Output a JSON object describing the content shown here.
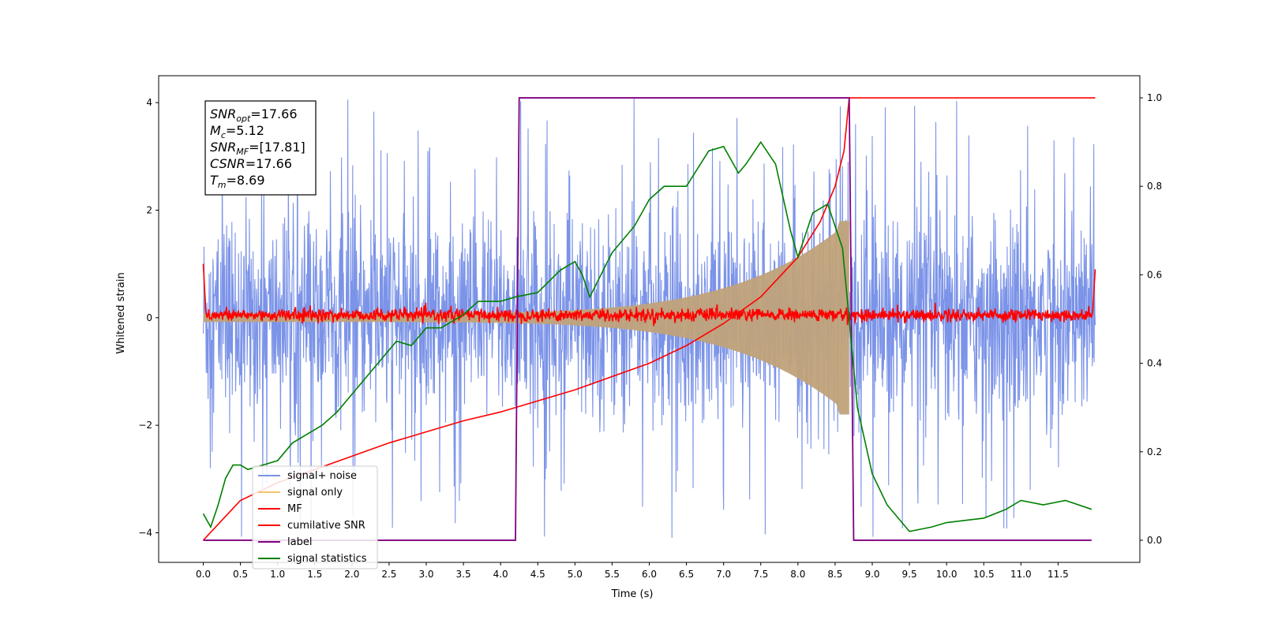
{
  "chart_data": {
    "type": "line",
    "xlabel": "Time (s)",
    "ylabel": "Whitened strain",
    "xlim": [
      -0.6,
      12.6
    ],
    "ylim": [
      -4.55,
      4.5
    ],
    "ylim_right": [
      -0.05,
      1.05
    ],
    "x_ticks": [
      "0.0",
      "0.5",
      "1.0",
      "1.5",
      "2.0",
      "2.5",
      "3.0",
      "3.5",
      "4.0",
      "4.5",
      "5.0",
      "5.5",
      "6.0",
      "6.5",
      "7.0",
      "7.5",
      "8.0",
      "8.5",
      "9.0",
      "9.5",
      "10.0",
      "10.5",
      "11.0",
      "11.5"
    ],
    "y_ticks_left": [
      "4",
      "2",
      "0",
      "−2",
      "−4"
    ],
    "y_ticks_right": [
      "1.0",
      "0.8",
      "0.6",
      "0.4",
      "0.2",
      "0.0"
    ],
    "annotation": {
      "lines": [
        {
          "sym": "SNR",
          "sub": "opt",
          "val": "=17.66"
        },
        {
          "sym": "M",
          "sub": "c",
          "val": "=5.12"
        },
        {
          "sym": "SNR",
          "sub": "MF",
          "val": "=[17.81]"
        },
        {
          "sym": "CSNR",
          "sub": "",
          "val": "=17.66"
        },
        {
          "sym": "T",
          "sub": "m",
          "val": "=8.69"
        }
      ]
    },
    "legend": {
      "placement": "lower-left",
      "entries": [
        {
          "label": "signal+ noise",
          "color": "#7b93e8"
        },
        {
          "label": "signal only",
          "color": "#f5c56b"
        },
        {
          "label": "MF",
          "color": "#ff0000"
        },
        {
          "label": "cumilative SNR",
          "color": "#ff0000"
        },
        {
          "label": "label",
          "color": "#800080"
        },
        {
          "label": "signal statistics",
          "color": "#008000"
        }
      ]
    },
    "series": [
      {
        "name": "signal+ noise",
        "axis": "left",
        "color": "#7b93e8",
        "x_range": [
          0,
          12.0
        ],
        "envelope": 2.5,
        "spike_max": 4.1
      },
      {
        "name": "signal only",
        "axis": "left",
        "color": "#c0a27a",
        "chirp_end": 8.69,
        "amplitude_start": 0.08,
        "amplitude_end": 1.8
      },
      {
        "name": "MF",
        "axis": "left",
        "color": "#ff0000",
        "x_range": [
          0,
          12.0
        ],
        "level": 0.05,
        "noise": 0.06
      },
      {
        "name": "cumilative SNR",
        "axis": "right",
        "color": "#ff0000",
        "x": [
          0,
          0.5,
          1.0,
          1.5,
          2.0,
          2.5,
          3.0,
          3.5,
          4.0,
          4.5,
          5.0,
          5.5,
          6.0,
          6.5,
          7.0,
          7.5,
          8.0,
          8.3,
          8.5,
          8.62,
          8.69,
          12.0
        ],
        "y": [
          0,
          0.09,
          0.13,
          0.16,
          0.19,
          0.22,
          0.245,
          0.27,
          0.29,
          0.315,
          0.34,
          0.37,
          0.4,
          0.44,
          0.49,
          0.55,
          0.64,
          0.72,
          0.8,
          0.88,
          1.0,
          1.0
        ]
      },
      {
        "name": "label",
        "axis": "right",
        "color": "#800080",
        "x": [
          0,
          4.2,
          4.25,
          8.69,
          8.75,
          11.95
        ],
        "y": [
          0,
          0,
          1,
          1,
          0,
          0
        ]
      },
      {
        "name": "signal statistics",
        "axis": "right",
        "color": "#008000",
        "x": [
          0,
          0.1,
          0.2,
          0.3,
          0.4,
          0.5,
          0.6,
          0.8,
          1.0,
          1.2,
          1.4,
          1.6,
          1.8,
          2.0,
          2.2,
          2.4,
          2.6,
          2.8,
          3.0,
          3.2,
          3.5,
          3.7,
          4.0,
          4.2,
          4.5,
          4.8,
          5.0,
          5.1,
          5.2,
          5.5,
          5.8,
          6.0,
          6.2,
          6.5,
          6.8,
          7.0,
          7.2,
          7.3,
          7.5,
          7.7,
          7.9,
          8.0,
          8.2,
          8.4,
          8.6,
          8.8,
          9.0,
          9.2,
          9.5,
          9.8,
          10.0,
          10.5,
          10.8,
          11.0,
          11.3,
          11.6,
          11.95
        ],
        "y": [
          0.06,
          0.03,
          0.08,
          0.14,
          0.17,
          0.17,
          0.16,
          0.17,
          0.18,
          0.22,
          0.24,
          0.26,
          0.29,
          0.33,
          0.37,
          0.41,
          0.45,
          0.44,
          0.48,
          0.48,
          0.51,
          0.54,
          0.54,
          0.55,
          0.56,
          0.61,
          0.63,
          0.6,
          0.55,
          0.65,
          0.71,
          0.77,
          0.8,
          0.8,
          0.88,
          0.89,
          0.83,
          0.85,
          0.9,
          0.85,
          0.7,
          0.64,
          0.74,
          0.76,
          0.66,
          0.3,
          0.15,
          0.08,
          0.02,
          0.03,
          0.04,
          0.05,
          0.07,
          0.09,
          0.08,
          0.09,
          0.07
        ]
      }
    ]
  }
}
